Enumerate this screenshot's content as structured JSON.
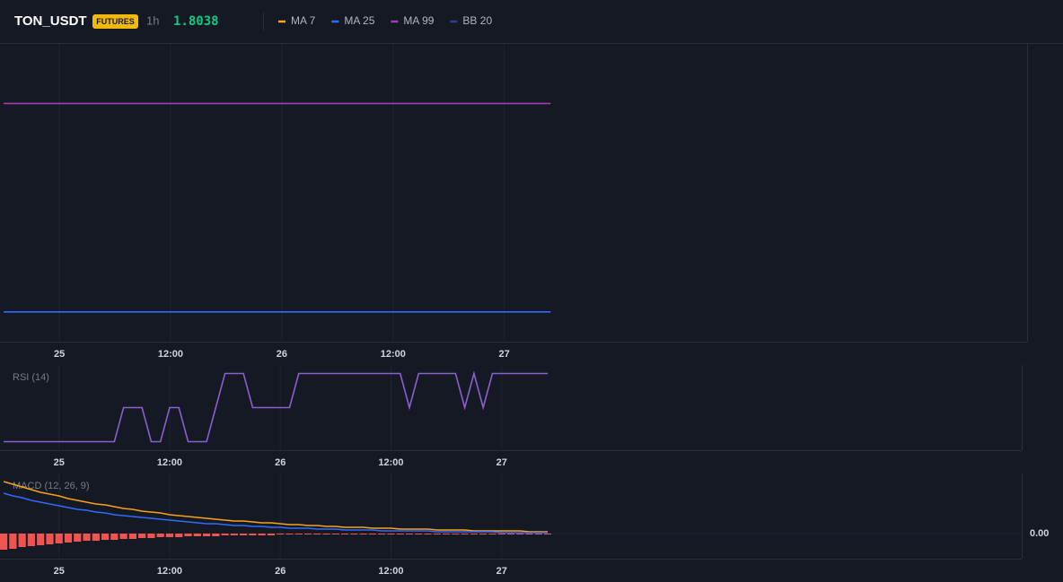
{
  "header": {
    "symbol": "TON_USDT",
    "badge": "FUTURES",
    "interval": "1h",
    "price": "1.8038"
  },
  "chart_data": [
    {
      "type": "line",
      "x": [
        -6,
        53
      ],
      "xlim": [
        -6.4,
        104.4
      ],
      "ylim": [
        1.78,
        1.82
      ],
      "xticks": [
        {
          "value": 0,
          "label": "25"
        },
        {
          "value": 12,
          "label": "12:00"
        },
        {
          "value": 24,
          "label": "26"
        },
        {
          "value": 36,
          "label": "12:00"
        },
        {
          "value": 48,
          "label": "27"
        }
      ],
      "series": [
        {
          "name": "MA 7",
          "color": "#f7a21b",
          "values": [
            null,
            null
          ]
        },
        {
          "name": "MA 25",
          "color": "#2f6bff",
          "values": [
            1.784,
            1.784
          ]
        },
        {
          "name": "MA 99",
          "color": "#a43fb3",
          "values": [
            1.812,
            1.812
          ]
        },
        {
          "name": "BB 20",
          "color": "#2b3f8f",
          "values": [
            null,
            null
          ]
        }
      ]
    },
    {
      "type": "line",
      "title": "RSI (14)",
      "x": [
        -6,
        6,
        7,
        9,
        10,
        11,
        12,
        13,
        14,
        16,
        18,
        20,
        21,
        25,
        26,
        37,
        38,
        39,
        43,
        44,
        45,
        46,
        47,
        53
      ],
      "xlim": [
        -6.4,
        104.4
      ],
      "ylim": [
        0,
        100
      ],
      "xticks": [
        {
          "value": 0,
          "label": "25"
        },
        {
          "value": 12,
          "label": "12:00"
        },
        {
          "value": 24,
          "label": "26"
        },
        {
          "value": 36,
          "label": "12:00"
        },
        {
          "value": 48,
          "label": "27"
        }
      ],
      "series": [
        {
          "color": "#8a5fd0",
          "values": [
            10,
            10,
            50,
            50,
            10,
            10,
            50,
            50,
            10,
            10,
            90,
            90,
            50,
            50,
            90,
            90,
            50,
            90,
            90,
            50,
            90,
            50,
            90,
            90
          ]
        }
      ]
    },
    {
      "type": "combo",
      "title": "MACD (12, 26, 9)",
      "x": [
        -6,
        -5,
        -4,
        -3,
        -2,
        -1,
        0,
        1,
        2,
        3,
        4,
        5,
        6,
        7,
        8,
        9,
        10,
        11,
        12,
        13,
        14,
        15,
        16,
        17,
        18,
        19,
        20,
        21,
        22,
        23,
        24,
        25,
        26,
        27,
        28,
        29,
        30,
        31,
        32,
        33,
        34,
        35,
        36,
        37,
        38,
        39,
        40,
        41,
        42,
        43,
        44,
        45,
        46,
        47,
        48,
        49,
        50,
        51,
        52,
        53
      ],
      "xlim": [
        -6.4,
        104.4
      ],
      "ylim": [
        -0.0028,
        0.0067
      ],
      "xticks": [
        {
          "value": 0,
          "label": "25"
        },
        {
          "value": 12,
          "label": "12:00"
        },
        {
          "value": 24,
          "label": "26"
        },
        {
          "value": 36,
          "label": "12:00"
        },
        {
          "value": 48,
          "label": "27"
        }
      ],
      "yticks": [
        {
          "value": 0,
          "label": "0.00"
        }
      ],
      "series": [
        {
          "type": "bar",
          "color": "#f05350",
          "values": [
            -0.0018,
            -0.0017,
            -0.0015,
            -0.0014,
            -0.0013,
            -0.0012,
            -0.0011,
            -0.001,
            -0.0009,
            -0.0008,
            -0.0008,
            -0.0007,
            -0.0007,
            -0.0006,
            -0.0006,
            -0.0005,
            -0.0005,
            -0.0004,
            -0.0004,
            -0.0004,
            -0.0003,
            -0.0003,
            -0.0003,
            -0.0003,
            -0.0002,
            -0.0002,
            -0.0002,
            -0.0002,
            -0.0002,
            -0.0002,
            -0.0001,
            -0.0001,
            -0.0001,
            -0.0001,
            -0.0001,
            -0.0001,
            -0.0001,
            -0.0001,
            -0.0001,
            -0.0001,
            -0.0001,
            -0.0001,
            -0.0001,
            -0.0001,
            -0.0001,
            -0.0001,
            -0.0001,
            -0.0001,
            -0.0001,
            -0.0001,
            -0.0001,
            -0.0001,
            -0.0001,
            -0.0001,
            -0.0001,
            -0.0001,
            -0.0001,
            -0.0001,
            -0.0001,
            -0.0001
          ]
        },
        {
          "type": "line",
          "color": "#f7a21b",
          "values": [
            0.0058,
            0.0055,
            0.0052,
            0.0049,
            0.0046,
            0.0044,
            0.0042,
            0.0039,
            0.0037,
            0.0035,
            0.0033,
            0.0032,
            0.003,
            0.0028,
            0.0027,
            0.0025,
            0.0024,
            0.0023,
            0.0021,
            0.002,
            0.0019,
            0.0018,
            0.0017,
            0.0016,
            0.0015,
            0.0014,
            0.0014,
            0.0013,
            0.0012,
            0.0012,
            0.0011,
            0.001,
            0.001,
            0.0009,
            0.0009,
            0.0008,
            0.0008,
            0.0007,
            0.0007,
            0.0007,
            0.0006,
            0.0006,
            0.0006,
            0.0005,
            0.0005,
            0.0005,
            0.0005,
            0.0004,
            0.0004,
            0.0004,
            0.0004,
            0.0003,
            0.0003,
            0.0003,
            0.0003,
            0.0003,
            0.0003,
            0.0002,
            0.0002,
            0.0002
          ]
        },
        {
          "type": "line",
          "color": "#2f6bff",
          "values": [
            0.0045,
            0.0042,
            0.004,
            0.0037,
            0.0035,
            0.0033,
            0.0031,
            0.0029,
            0.0027,
            0.0026,
            0.0024,
            0.0023,
            0.0021,
            0.002,
            0.0019,
            0.0018,
            0.0017,
            0.0016,
            0.0015,
            0.0014,
            0.0013,
            0.0012,
            0.0011,
            0.0011,
            0.001,
            0.0009,
            0.0009,
            0.0008,
            0.0008,
            0.0007,
            0.0007,
            0.0006,
            0.0006,
            0.0006,
            0.0005,
            0.0005,
            0.0005,
            0.0004,
            0.0004,
            0.0004,
            0.0004,
            0.0003,
            0.0003,
            0.0003,
            0.0003,
            0.0003,
            0.0003,
            0.0002,
            0.0002,
            0.0002,
            0.0002,
            0.0002,
            0.0002,
            0.0002,
            0.0001,
            0.0001,
            0.0001,
            0.0001,
            0.0001,
            0.0001
          ]
        }
      ]
    }
  ]
}
